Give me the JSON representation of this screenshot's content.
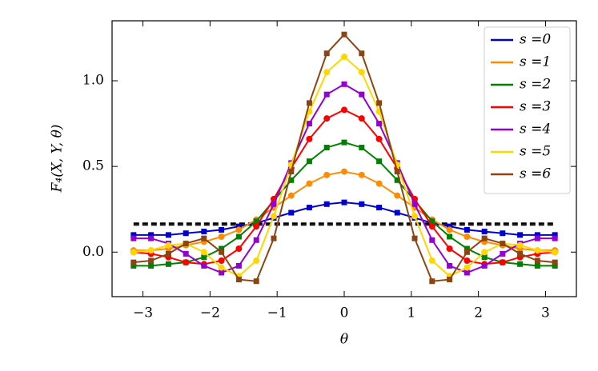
{
  "chart_data": {
    "type": "line",
    "xlabel": "θ",
    "ylabel": "F₄(X, Y, θ)",
    "x": [
      -3.14,
      -2.88,
      -2.62,
      -2.36,
      -2.09,
      -1.83,
      -1.57,
      -1.31,
      -1.05,
      -0.79,
      -0.52,
      -0.26,
      0,
      0.26,
      0.52,
      0.79,
      1.05,
      1.31,
      1.57,
      1.83,
      2.09,
      2.36,
      2.62,
      2.88,
      3.14
    ],
    "series": [
      {
        "name": "s =0",
        "color": "#0000cc",
        "values": [
          0.1,
          0.1,
          0.1,
          0.11,
          0.12,
          0.13,
          0.15,
          0.17,
          0.2,
          0.23,
          0.26,
          0.28,
          0.29,
          0.28,
          0.26,
          0.23,
          0.2,
          0.17,
          0.15,
          0.13,
          0.12,
          0.11,
          0.1,
          0.1,
          0.1
        ]
      },
      {
        "name": "s =1",
        "color": "#ff8c00",
        "values": [
          0.01,
          0.01,
          0.02,
          0.04,
          0.06,
          0.09,
          0.13,
          0.19,
          0.26,
          0.33,
          0.4,
          0.45,
          0.47,
          0.45,
          0.4,
          0.33,
          0.26,
          0.19,
          0.13,
          0.09,
          0.06,
          0.04,
          0.02,
          0.01,
          0.01
        ]
      },
      {
        "name": "s =2",
        "color": "#008000",
        "values": [
          -0.08,
          -0.08,
          -0.07,
          -0.06,
          -0.03,
          0.02,
          0.09,
          0.18,
          0.3,
          0.42,
          0.53,
          0.61,
          0.64,
          0.61,
          0.53,
          0.42,
          0.3,
          0.18,
          0.09,
          0.02,
          -0.03,
          -0.06,
          -0.07,
          -0.08,
          -0.08
        ]
      },
      {
        "name": "s =3",
        "color": "#ff0000",
        "values": [
          0.0,
          -0.01,
          -0.03,
          -0.06,
          -0.07,
          -0.05,
          0.02,
          0.15,
          0.31,
          0.49,
          0.66,
          0.78,
          0.83,
          0.78,
          0.66,
          0.49,
          0.31,
          0.15,
          0.02,
          -0.05,
          -0.07,
          -0.06,
          -0.03,
          -0.01,
          0.0
        ]
      },
      {
        "name": "s =4",
        "color": "#9400d3",
        "values": [
          0.08,
          0.08,
          0.05,
          -0.01,
          -0.08,
          -0.12,
          -0.08,
          0.07,
          0.28,
          0.52,
          0.75,
          0.92,
          0.98,
          0.92,
          0.75,
          0.52,
          0.28,
          0.07,
          -0.08,
          -0.12,
          -0.08,
          -0.01,
          0.05,
          0.08,
          0.08
        ]
      },
      {
        "name": "s =5",
        "color": "#ffd700",
        "values": [
          0.0,
          0.01,
          0.04,
          0.05,
          0.0,
          -0.09,
          -0.14,
          -0.05,
          0.21,
          0.51,
          0.82,
          1.05,
          1.14,
          1.05,
          0.82,
          0.51,
          0.21,
          -0.05,
          -0.14,
          -0.09,
          0.0,
          0.05,
          0.04,
          0.01,
          0.0
        ]
      },
      {
        "name": "s =6",
        "color": "#8b4513",
        "values": [
          -0.06,
          -0.05,
          -0.01,
          0.05,
          0.08,
          0.0,
          -0.16,
          -0.17,
          0.08,
          0.47,
          0.87,
          1.16,
          1.27,
          1.16,
          0.87,
          0.47,
          0.08,
          -0.17,
          -0.16,
          0.0,
          0.08,
          0.05,
          -0.01,
          -0.05,
          -0.06
        ]
      }
    ],
    "hlines": [
      0.168,
      0.159
    ],
    "xlim": [
      -3.46,
      3.46
    ],
    "ylim": [
      -0.26,
      1.35
    ],
    "xticks": [
      -3,
      -2,
      -1,
      0,
      1,
      2,
      3
    ],
    "yticks": [
      {
        "value": 0,
        "label": "0.0"
      },
      {
        "value": 0.5,
        "label": "0.5"
      },
      {
        "value": 1,
        "label": "1.0"
      }
    ],
    "legend": "upper right"
  }
}
